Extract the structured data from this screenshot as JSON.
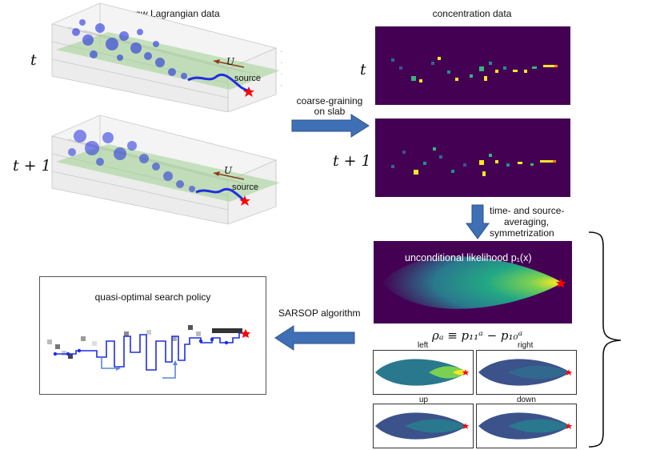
{
  "title_raw": "raw Lagrangian data",
  "title_conc": "concentration data",
  "time_t": "t",
  "time_t1": "t + 1",
  "wind_label": "U",
  "source_label": "source",
  "arrow1_label": [
    "coarse-graining",
    "on slab"
  ],
  "arrow2_label": [
    "time- and source-",
    "averaging,",
    "symmetrization"
  ],
  "likelihood_label": "unconditional likelihood p₁(x)",
  "rho_label": "ρₐ ≡ p₁₁ᵃ − p₁₀ᵃ",
  "dir_left": "left",
  "dir_right": "right",
  "dir_up": "up",
  "dir_down": "down",
  "arrow3_label": "SARSOP algorithm",
  "policy_title": "quasi-optimal search policy",
  "colors": {
    "arrow": "#3f6fb5",
    "viridis_dark": "#440154",
    "star": "#ff0000",
    "plume": "#1f2ee0",
    "slab": "#9ed08f"
  }
}
